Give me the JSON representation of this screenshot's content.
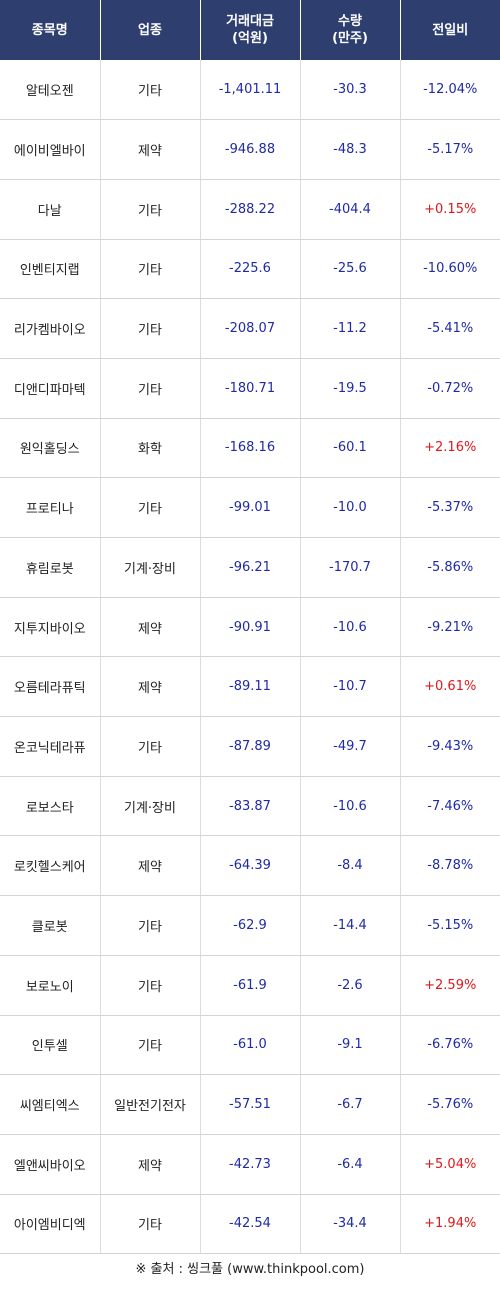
{
  "columns": [
    "종목명",
    "업종",
    "거래대금\n(억원)",
    "수량\n(만주)",
    "전일비"
  ],
  "column_lines": [
    [
      "종목명"
    ],
    [
      "업종"
    ],
    [
      "거래대금",
      "(억원)"
    ],
    [
      "수량",
      "(만주)"
    ],
    [
      "전일비"
    ]
  ],
  "rows": [
    {
      "name": "알테오젠",
      "sector": "기타",
      "amount": "-1,401.11",
      "qty": "-30.3",
      "change": "-12.04%",
      "dir": "down"
    },
    {
      "name": "에이비엘바이",
      "sector": "제약",
      "amount": "-946.88",
      "qty": "-48.3",
      "change": "-5.17%",
      "dir": "down"
    },
    {
      "name": "다날",
      "sector": "기타",
      "amount": "-288.22",
      "qty": "-404.4",
      "change": "+0.15%",
      "dir": "up"
    },
    {
      "name": "인벤티지랩",
      "sector": "기타",
      "amount": "-225.6",
      "qty": "-25.6",
      "change": "-10.60%",
      "dir": "down"
    },
    {
      "name": "리가켐바이오",
      "sector": "기타",
      "amount": "-208.07",
      "qty": "-11.2",
      "change": "-5.41%",
      "dir": "down"
    },
    {
      "name": "디앤디파마텍",
      "sector": "기타",
      "amount": "-180.71",
      "qty": "-19.5",
      "change": "-0.72%",
      "dir": "down"
    },
    {
      "name": "원익홀딩스",
      "sector": "화학",
      "amount": "-168.16",
      "qty": "-60.1",
      "change": "+2.16%",
      "dir": "up"
    },
    {
      "name": "프로티나",
      "sector": "기타",
      "amount": "-99.01",
      "qty": "-10.0",
      "change": "-5.37%",
      "dir": "down"
    },
    {
      "name": "휴림로봇",
      "sector": "기계·장비",
      "amount": "-96.21",
      "qty": "-170.7",
      "change": "-5.86%",
      "dir": "down"
    },
    {
      "name": "지투지바이오",
      "sector": "제약",
      "amount": "-90.91",
      "qty": "-10.6",
      "change": "-9.21%",
      "dir": "down"
    },
    {
      "name": "오름테라퓨틱",
      "sector": "제약",
      "amount": "-89.11",
      "qty": "-10.7",
      "change": "+0.61%",
      "dir": "up"
    },
    {
      "name": "온코닉테라퓨",
      "sector": "기타",
      "amount": "-87.89",
      "qty": "-49.7",
      "change": "-9.43%",
      "dir": "down"
    },
    {
      "name": "로보스타",
      "sector": "기계·장비",
      "amount": "-83.87",
      "qty": "-10.6",
      "change": "-7.46%",
      "dir": "down"
    },
    {
      "name": "로킷헬스케어",
      "sector": "제약",
      "amount": "-64.39",
      "qty": "-8.4",
      "change": "-8.78%",
      "dir": "down"
    },
    {
      "name": "클로봇",
      "sector": "기타",
      "amount": "-62.9",
      "qty": "-14.4",
      "change": "-5.15%",
      "dir": "down"
    },
    {
      "name": "보로노이",
      "sector": "기타",
      "amount": "-61.9",
      "qty": "-2.6",
      "change": "+2.59%",
      "dir": "up"
    },
    {
      "name": "인투셀",
      "sector": "기타",
      "amount": "-61.0",
      "qty": "-9.1",
      "change": "-6.76%",
      "dir": "down"
    },
    {
      "name": "씨엠티엑스",
      "sector": "일반전기전자",
      "amount": "-57.51",
      "qty": "-6.7",
      "change": "-5.76%",
      "dir": "down"
    },
    {
      "name": "엘앤씨바이오",
      "sector": "제약",
      "amount": "-42.73",
      "qty": "-6.4",
      "change": "+5.04%",
      "dir": "up"
    },
    {
      "name": "아이엠비디엑",
      "sector": "기타",
      "amount": "-42.54",
      "qty": "-34.4",
      "change": "+1.94%",
      "dir": "up"
    }
  ],
  "colors": {
    "header_bg": "#2e3e6f",
    "up": "#e0171b",
    "down": "#1f2aa6"
  },
  "source": "※ 출처 : 씽크풀 (www.thinkpool.com)"
}
